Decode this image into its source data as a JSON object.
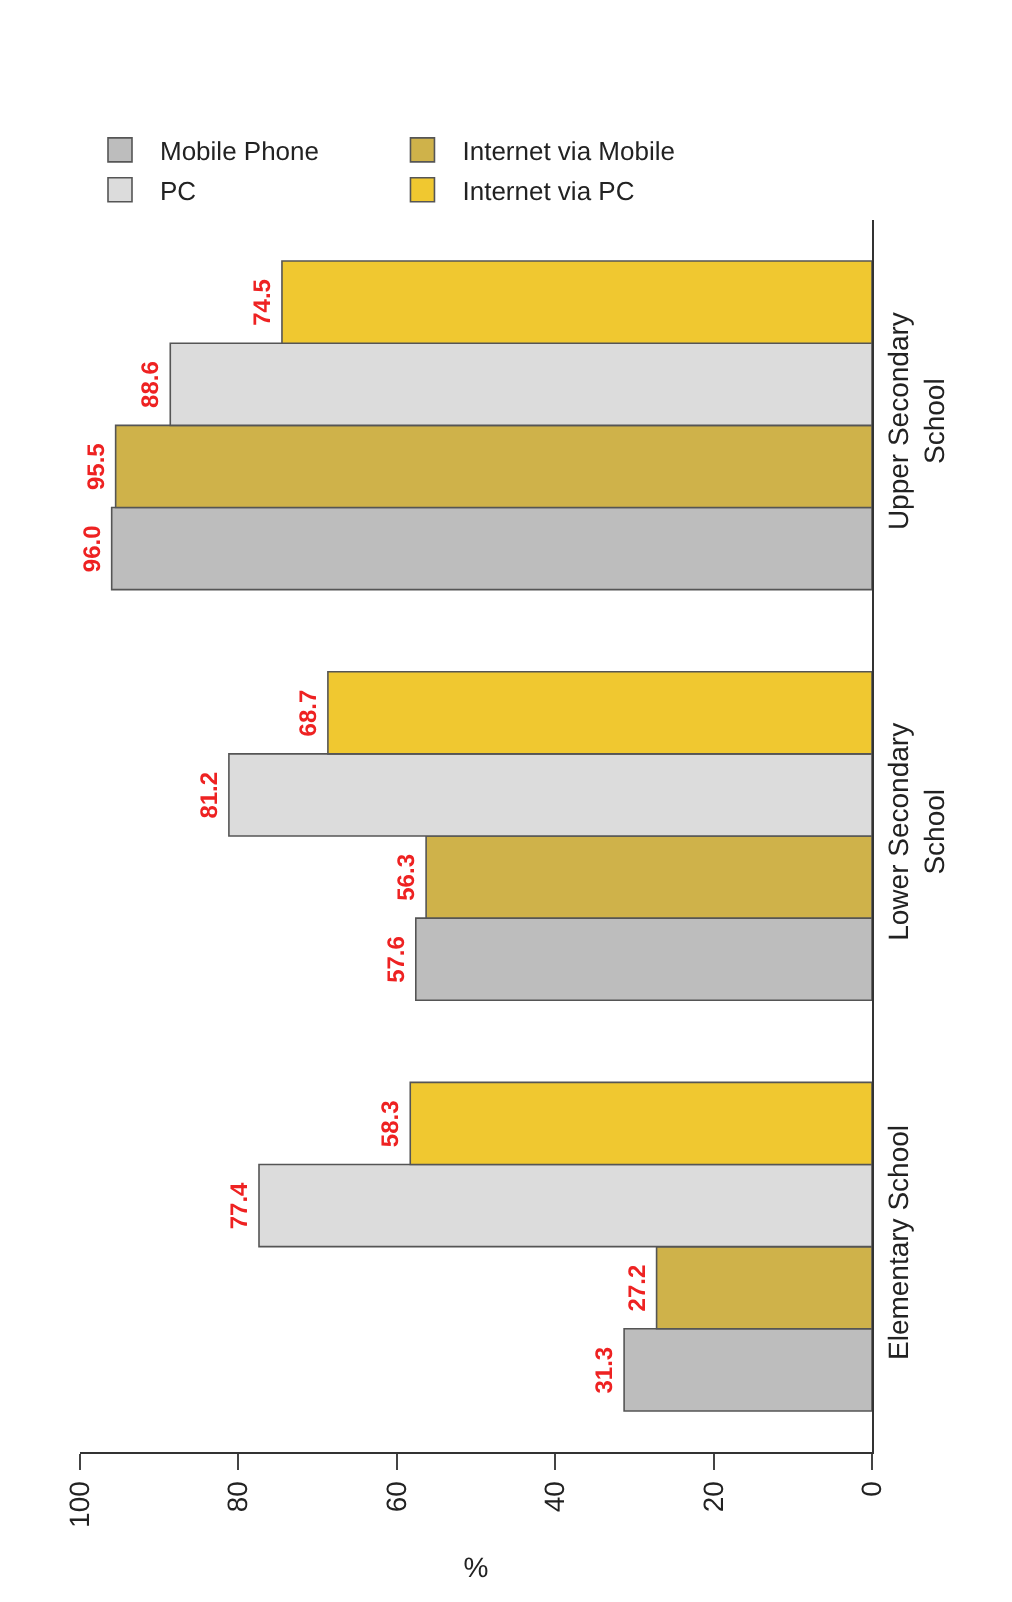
{
  "chart_data": {
    "type": "bar",
    "orientation": "horizontal",
    "xlabel": "%",
    "categories": [
      "Upper Secondary\nSchool",
      "Lower Secondary\nSchool",
      "Elementary School"
    ],
    "series": [
      {
        "name": "Mobile Phone",
        "color": "#bdbdbd",
        "values": [
          96.0,
          57.6,
          31.3
        ],
        "value_labels": [
          "96.0",
          "57.6",
          "31.3"
        ]
      },
      {
        "name": "Internet via Mobile",
        "color": "#cfb24a",
        "values": [
          95.5,
          56.3,
          27.2
        ],
        "value_labels": [
          "95.5",
          "56.3",
          "27.2"
        ]
      },
      {
        "name": "PC",
        "color": "#dcdcdc",
        "values": [
          88.6,
          81.2,
          77.4
        ],
        "value_labels": [
          "88.6",
          "81.2",
          "77.4"
        ]
      },
      {
        "name": "Internet via PC",
        "color": "#f0c830",
        "values": [
          74.5,
          68.7,
          58.3
        ],
        "value_labels": [
          "74.5",
          "68.7",
          "58.3"
        ]
      }
    ],
    "xlim": [
      100,
      0
    ],
    "xticks": [
      0,
      20,
      40,
      60,
      80,
      100
    ],
    "legend": "top left"
  }
}
